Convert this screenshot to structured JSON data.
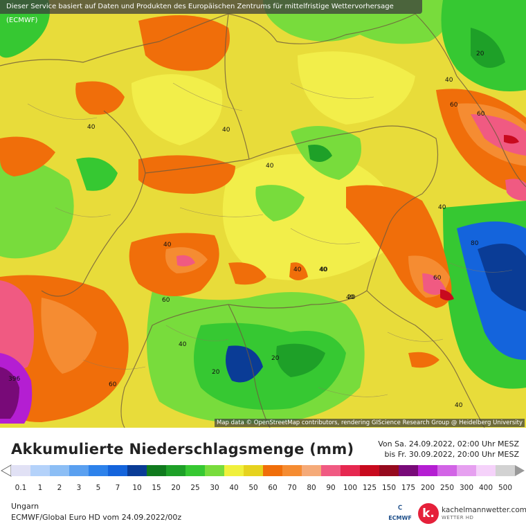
{
  "header": {
    "attribution_top": "Dieser Service basiert auf Daten und Produkten des Europäischen Zentrums für mittelfristige Wettervorhersage (ECMWF)",
    "attribution_map": "Map data © OpenStreetMap contributors, rendering GIScience Research Group @ Heidelberg University"
  },
  "map": {
    "contour_labels": [
      "40",
      "40",
      "40",
      "40",
      "40",
      "40",
      "40",
      "40",
      "40",
      "40",
      "40",
      "60",
      "60",
      "60",
      "60",
      "60",
      "80",
      "20",
      "20",
      "20",
      "20",
      "40",
      "396"
    ]
  },
  "product": {
    "title": "Akkumulierte Niederschlagsmenge (mm)",
    "period_from": "Von Sa. 24.09.2022, 02:00 Uhr MESZ",
    "period_to": "bis Fr. 30.09.2022, 20:00 Uhr MESZ",
    "region": "Ungarn",
    "model": "ECMWF/Global Euro HD vom  24.09.2022/00z"
  },
  "legend": {
    "values": [
      "0.1",
      "1",
      "2",
      "3",
      "5",
      "7",
      "10",
      "15",
      "20",
      "25",
      "30",
      "40",
      "50",
      "60",
      "70",
      "80",
      "90",
      "100",
      "125",
      "150",
      "175",
      "200",
      "250",
      "300",
      "400",
      "500"
    ],
    "colors": [
      "#e1e1f5",
      "#b4d2fa",
      "#8cbef5",
      "#5aa0f0",
      "#2d82eb",
      "#1464dc",
      "#0a3c96",
      "#107a1e",
      "#1ea028",
      "#36c832",
      "#78dc3c",
      "#f0f03c",
      "#e6d21e",
      "#f06e0a",
      "#f58c32",
      "#f5aa78",
      "#f05a82",
      "#e62850",
      "#c80a1e",
      "#960a1e",
      "#780a78",
      "#b41ed2",
      "#d264e6",
      "#e6a0f0",
      "#f5d2fa",
      "#d2d2d2"
    ]
  },
  "branding": {
    "ecmwf": "ECMWF",
    "site": "kachelmannwetter.com",
    "site_sub": "WETTER HD",
    "site_logo_letter": "k."
  }
}
